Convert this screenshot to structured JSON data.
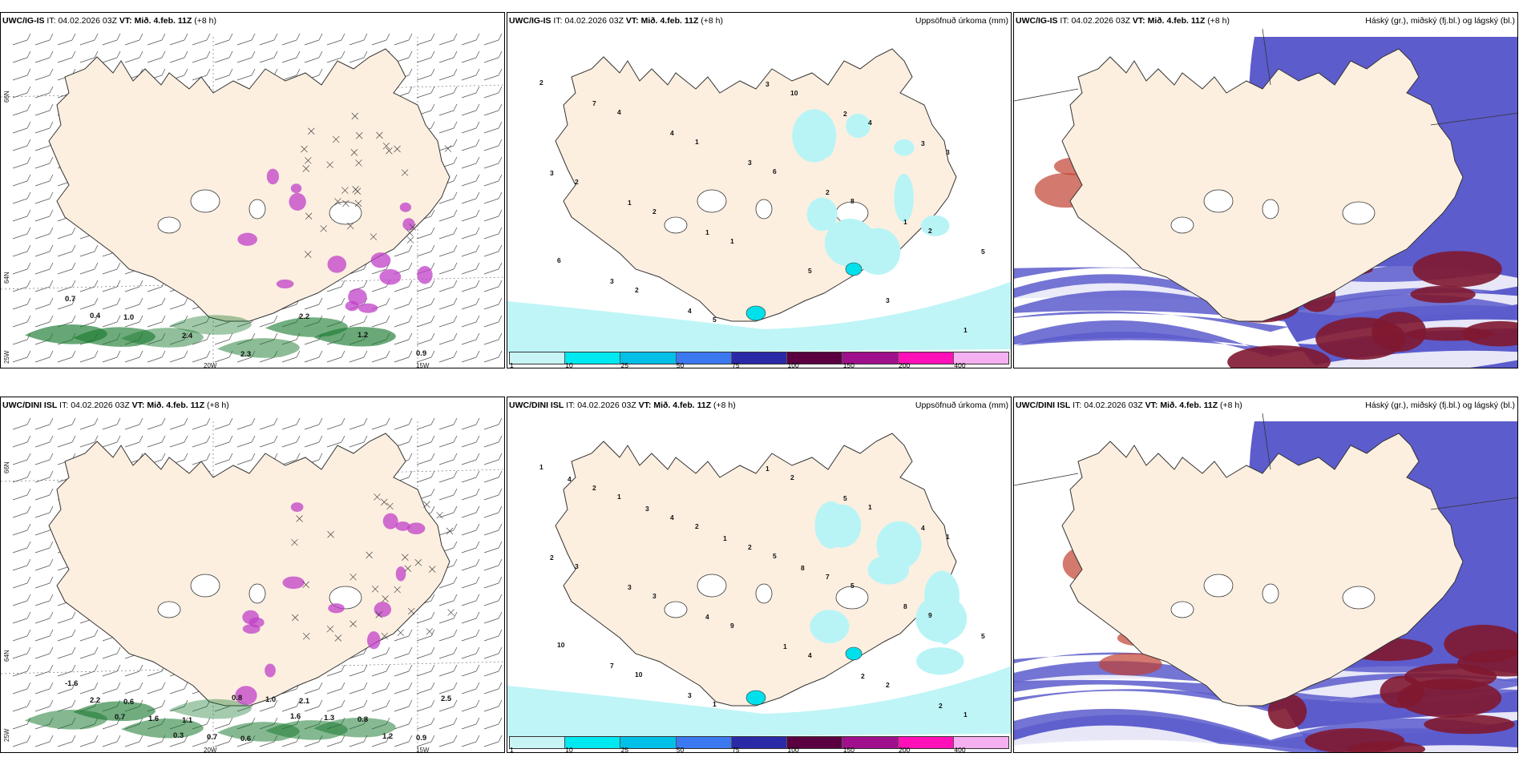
{
  "panels": {
    "p1": {
      "model": "UWC/IG-IS",
      "it_label": "IT:",
      "it": "04.02.2026 03Z",
      "vt_label": "VT:",
      "vt": "Mið. 4.feb. 11Z",
      "lead": "(+8 h)",
      "right": ""
    },
    "p2": {
      "model": "UWC/IG-IS",
      "it_label": "IT:",
      "it": "04.02.2026 03Z",
      "vt_label": "VT:",
      "vt": "Mið. 4.feb. 11Z",
      "lead": "(+8 h)",
      "right": "Uppsöfnuð úrkoma (mm)"
    },
    "p3": {
      "model": "UWC/IG-IS",
      "it_label": "IT:",
      "it": "04.02.2026 03Z",
      "vt_label": "VT:",
      "vt": "Mið. 4.feb. 11Z",
      "lead": "(+8 h)",
      "right": "Háský (gr.), miðský (fj.bl.) og lágský (bl.)"
    },
    "p4": {
      "model": "UWC/DINI ISL",
      "it_label": "IT:",
      "it": "04.02.2026 03Z",
      "vt_label": "VT:",
      "vt": "Mið. 4.feb. 11Z",
      "lead": "(+8 h)",
      "right": ""
    },
    "p5": {
      "model": "UWC/DINI ISL",
      "it_label": "IT:",
      "it": "04.02.2026 03Z",
      "vt_label": "VT:",
      "vt": "Mið. 4.feb. 11Z",
      "lead": "(+8 h)",
      "right": "Uppsöfnuð úrkoma (mm)"
    },
    "p6": {
      "model": "UWC/DINI ISL",
      "it_label": "IT:",
      "it": "04.02.2026 03Z",
      "vt_label": "VT:",
      "vt": "Mið. 4.feb. 11Z",
      "lead": "(+8 h)",
      "right": "Háský (gr.), miðský (fj.bl.) og lágský (bl.)"
    }
  },
  "axes": {
    "lat66": "66N",
    "lat64": "64N",
    "lon25": "25W",
    "lon20": "20W",
    "lon15": "15W"
  },
  "colorbar": {
    "ticks": [
      "1",
      "10",
      "25",
      "50",
      "75",
      "100",
      "150",
      "200",
      "400"
    ],
    "colors": [
      "#c8f4f6",
      "#00e8f0",
      "#00c0e8",
      "#3c78f0",
      "#2a2aa8",
      "#5a0040",
      "#a0108c",
      "#ff10b8",
      "#f4b0f0"
    ]
  },
  "colors": {
    "land": "#fcefe0",
    "coast": "#333333",
    "precip_light": "#b8f4f6",
    "precip_mid": "#00e0ea",
    "green": "#1a7a30",
    "purple": "#c040c8",
    "blue_cloud": "#5c5ccc",
    "maroon_cloud": "#801830"
  },
  "labels": {
    "p1": [
      "0.7",
      "1.0",
      "2.4",
      "2.3",
      "2.2",
      "1.2",
      "0.9",
      "0.4"
    ],
    "p4": [
      "-1.6",
      "0.6",
      "1.1",
      "0.6",
      "2.1",
      "0.8",
      "0.9",
      "2.2",
      "1.6",
      "0.7",
      "1.0",
      "1.3",
      "1.2",
      "2.5",
      "0.7",
      "0.3",
      "0.8",
      "1.6"
    ],
    "p2": [
      "2",
      "4",
      "1",
      "6",
      "8",
      "2",
      "6",
      "2",
      "5",
      "10",
      "4",
      "3",
      "2",
      "2",
      "1",
      "5",
      "3",
      "1",
      "7",
      "4",
      "3",
      "2",
      "1",
      "5",
      "3",
      "4",
      "3",
      "2",
      "3",
      "3",
      "1",
      "1"
    ],
    "p5": [
      "1",
      "1",
      "2",
      "5",
      "5",
      "9",
      "10",
      "10",
      "1",
      "2",
      "1",
      "1",
      "3",
      "3",
      "9",
      "4",
      "2",
      "1",
      "2",
      "4",
      "2",
      "7",
      "8",
      "5",
      "7",
      "3",
      "1",
      "5",
      "4",
      "2",
      "3",
      "4",
      "1",
      "2",
      "2",
      "4",
      "3",
      "1",
      "8"
    ]
  }
}
